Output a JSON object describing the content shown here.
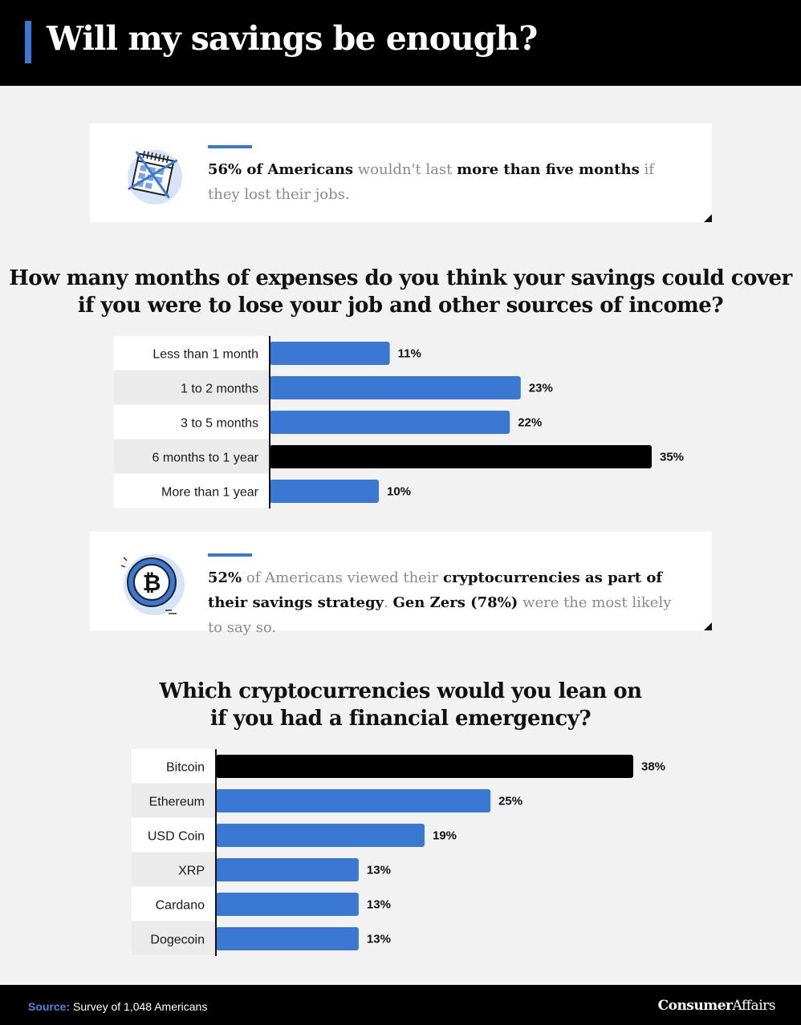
{
  "header": {
    "title": "Will my savings be enough?"
  },
  "callouts": [
    {
      "icon": "calendar-crossed-icon",
      "segments": [
        {
          "t": "56% of Americans",
          "b": true
        },
        {
          "t": " wouldn't last ",
          "b": false
        },
        {
          "t": "more than five months",
          "b": true
        },
        {
          "t": " if they lost their jobs.",
          "b": false
        }
      ]
    },
    {
      "icon": "bitcoin-coin-icon",
      "segments": [
        {
          "t": "52%",
          "b": true
        },
        {
          "t": " of Americans viewed their ",
          "b": false
        },
        {
          "t": "cryptocurrencies as part of their savings strategy",
          "b": true
        },
        {
          "t": ". ",
          "b": false
        },
        {
          "t": "Gen Zers (78%)",
          "b": true
        },
        {
          "t": " were the most likely to say so.",
          "b": false
        }
      ]
    }
  ],
  "chart_data": [
    {
      "type": "bar",
      "orientation": "horizontal",
      "title_line1": "How many months of expenses do you think your savings could cover",
      "title_line2": "if you were to lose your job and other sources of income?",
      "categories": [
        "Less than 1 month",
        "1 to 2 months",
        "3 to 5 months",
        "6 months to 1 year",
        "More than 1 year"
      ],
      "values": [
        11,
        23,
        22,
        35,
        10
      ],
      "value_labels": [
        "11%",
        "23%",
        "22%",
        "35%",
        "10%"
      ],
      "highlight_index": 3,
      "xlim": [
        0,
        35
      ]
    },
    {
      "type": "bar",
      "orientation": "horizontal",
      "title_line1": "Which cryptocurrencies would you lean on",
      "title_line2": "if you had a financial emergency?",
      "categories": [
        "Bitcoin",
        "Ethereum",
        "USD Coin",
        "XRP",
        "Cardano",
        "Dogecoin"
      ],
      "values": [
        38,
        25,
        19,
        13,
        13,
        13
      ],
      "value_labels": [
        "38%",
        "25%",
        "19%",
        "13%",
        "13%",
        "13%"
      ],
      "highlight_index": 0,
      "xlim": [
        0,
        38
      ]
    }
  ],
  "colors": {
    "bar": "#3a78d4",
    "highlight": "#000000",
    "accent": "#3a78d4"
  },
  "footer": {
    "source_key": "Source:",
    "source_text": "Survey of 1,048 Americans",
    "brand_bold": "Consumer",
    "brand_rest": "Affairs"
  }
}
